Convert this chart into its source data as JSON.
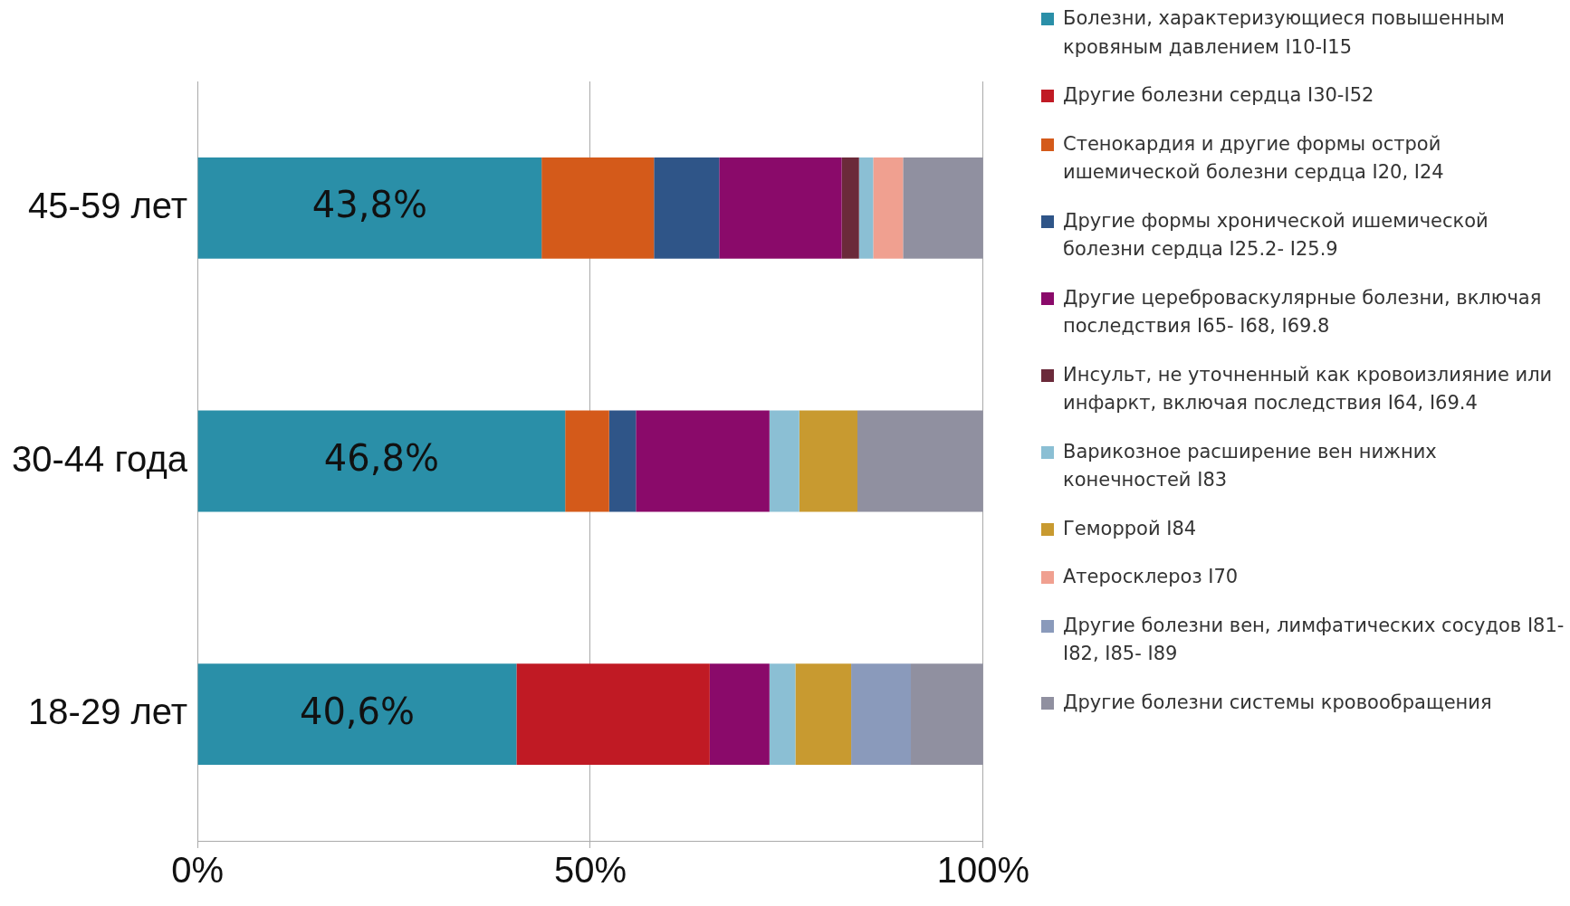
{
  "chart_data": {
    "type": "bar",
    "orientation": "horizontal",
    "stacked": true,
    "categories": [
      "45-59 лет",
      "30-44 года",
      "18-29 лет"
    ],
    "series": [
      {
        "name": "Болезни, характеризующиеся повышенным кровяным давлением I10-I15",
        "color": "#2a8fa8",
        "values": [
          43.8,
          46.8,
          40.6
        ],
        "value_labels": [
          "43,8%",
          "46,8%",
          "40,6%"
        ]
      },
      {
        "name": "Другие болезни сердца I30-I52",
        "color": "#c01a24",
        "values": [
          null,
          null,
          24.6
        ]
      },
      {
        "name": "Стенокардия  и другие формы острой ишемической болезни сердца I20, I24",
        "color": "#d45a1a",
        "values": [
          14.3,
          5.6,
          null
        ]
      },
      {
        "name": "Другие формы хронической ишемической болезни сердца I25.2- I25.9",
        "color": "#2f5588",
        "values": [
          8.3,
          3.4,
          null
        ]
      },
      {
        "name": "Другие цереброваскулярные болезни, включая последствия I65- I68, I69.8",
        "color": "#8a0a6a",
        "values": [
          15.6,
          17.0,
          7.6
        ]
      },
      {
        "name": "Инсульт, не уточненный как кровоизлияние или инфаркт, включая последствия I64, I69.4",
        "color": "#6b2a3a",
        "values": [
          2.2,
          null,
          null
        ]
      },
      {
        "name": "Варикозное расширение вен нижних конечностей I83",
        "color": "#8bbfd4",
        "values": [
          1.8,
          3.8,
          3.3
        ]
      },
      {
        "name": "Геморрой I84",
        "color": "#c89a30",
        "values": [
          null,
          7.4,
          7.1
        ]
      },
      {
        "name": "Атеросклероз I70",
        "color": "#f0a090",
        "values": [
          3.8,
          null,
          null
        ]
      },
      {
        "name": "Другие болезни вен, лимфатических сосудов I81-I82, I85- I89",
        "color": "#8a9abb",
        "values": [
          null,
          null,
          7.6
        ]
      },
      {
        "name": "Другие болезни системы кровообращения",
        "color": "#9090a0",
        "values": [
          10.2,
          16.0,
          9.2
        ]
      }
    ],
    "xlim": [
      0,
      100
    ],
    "xticks": [
      {
        "value": 0,
        "label": "0%"
      },
      {
        "value": 50,
        "label": "50%"
      },
      {
        "value": 100,
        "label": "100%"
      }
    ],
    "grid": "x",
    "legend": "right"
  }
}
